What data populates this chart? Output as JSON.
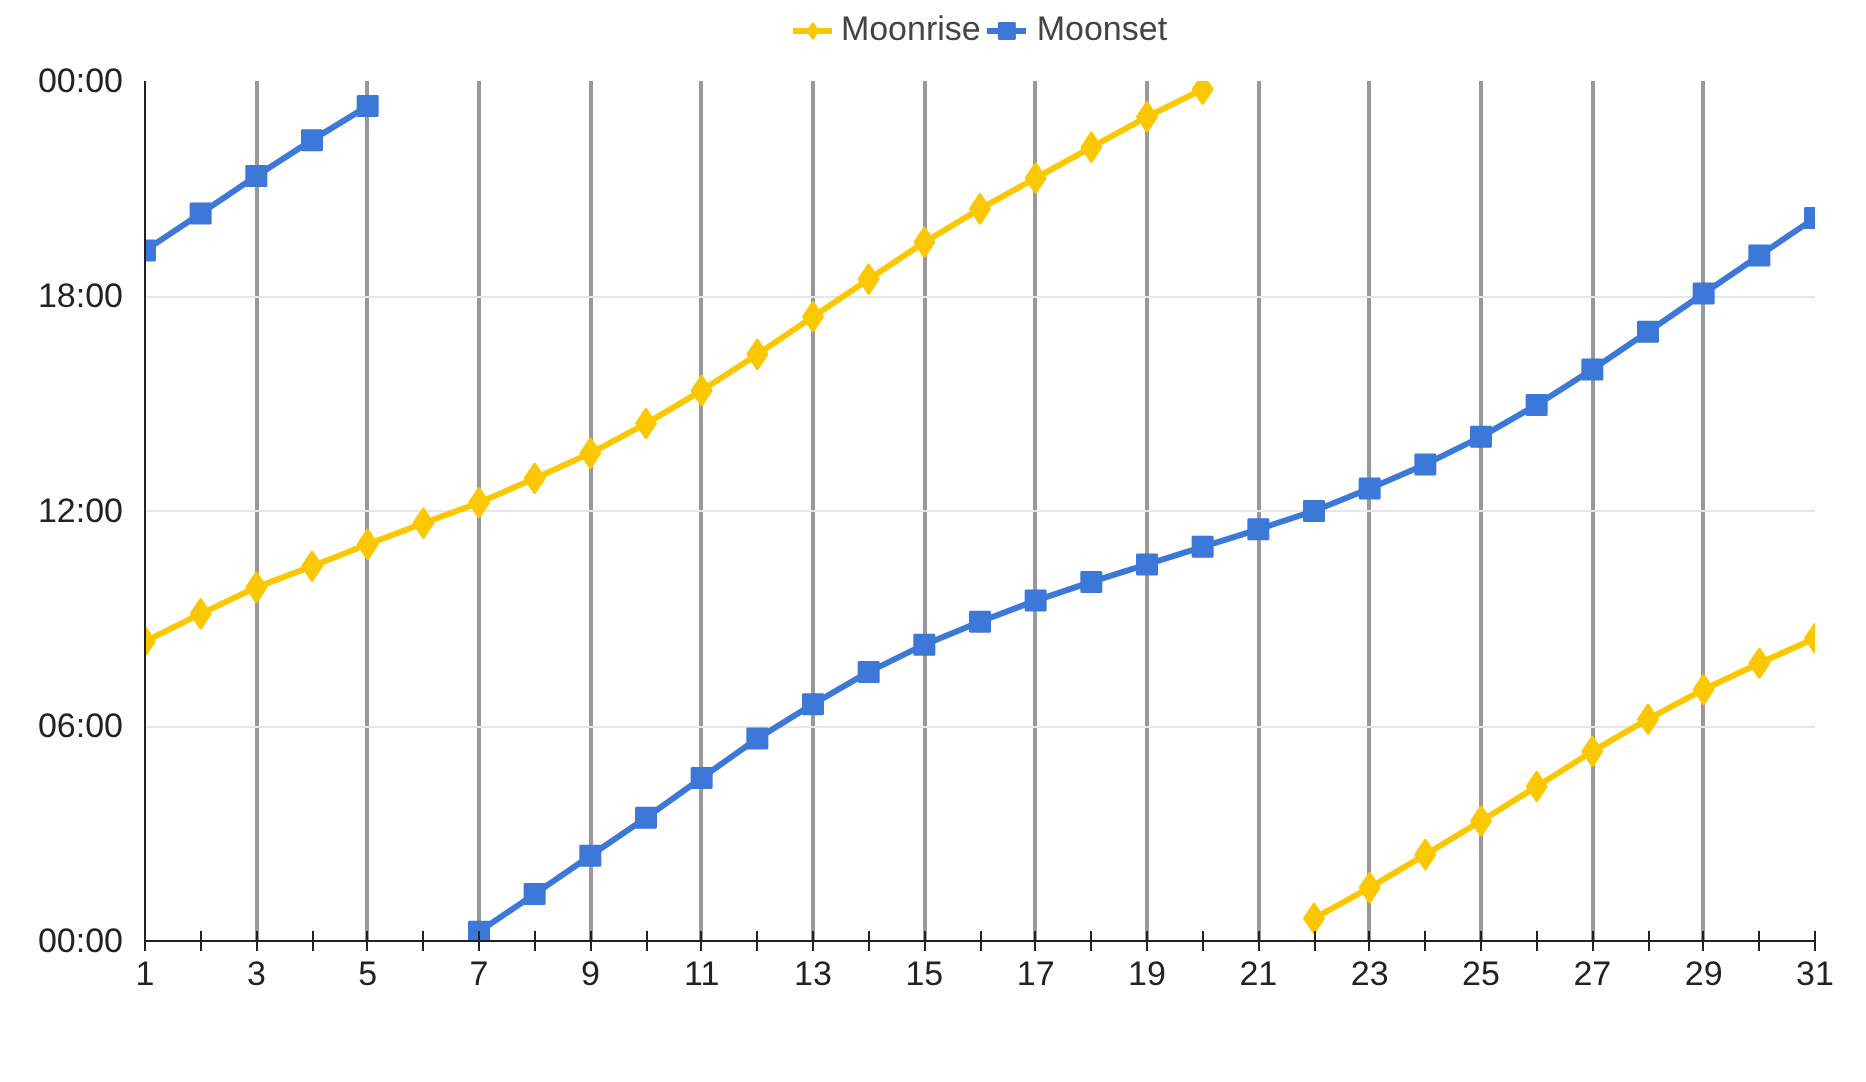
{
  "chart_data": {
    "type": "line",
    "x": [
      1,
      2,
      3,
      4,
      5,
      6,
      7,
      8,
      9,
      10,
      11,
      12,
      13,
      14,
      15,
      16,
      17,
      18,
      19,
      20,
      21,
      22,
      23,
      24,
      25,
      26,
      27,
      28,
      29,
      30,
      31
    ],
    "series": [
      {
        "name": "Moonrise",
        "color": "#fbc800",
        "marker": "diamond",
        "values": [
          8.36,
          9.13,
          9.87,
          10.46,
          11.07,
          11.66,
          12.23,
          12.91,
          13.61,
          14.44,
          15.36,
          16.37,
          17.42,
          18.47,
          19.5,
          20.43,
          21.29,
          22.15,
          23.0,
          23.77,
          null,
          0.63,
          1.49,
          2.41,
          3.35,
          4.31,
          5.29,
          6.19,
          7.02,
          7.75,
          8.45
        ]
      },
      {
        "name": "Moonset",
        "color": "#3c78d8",
        "marker": "square",
        "values": [
          19.27,
          20.3,
          21.35,
          22.35,
          23.3,
          null,
          0.26,
          1.31,
          2.38,
          3.44,
          4.55,
          5.65,
          6.61,
          7.51,
          8.27,
          8.91,
          9.5,
          10.02,
          10.51,
          11.0,
          11.49,
          12.0,
          12.63,
          13.3,
          14.07,
          14.96,
          15.95,
          17.0,
          18.07,
          19.13,
          20.18
        ]
      }
    ],
    "xlim": [
      1,
      31
    ],
    "xticks": [
      1,
      {
        "value": 2,
        "label": null
      },
      3,
      {
        "value": 4,
        "label": null
      },
      5,
      {
        "value": 6,
        "label": null
      },
      7,
      {
        "value": 8,
        "label": null
      },
      9,
      {
        "value": 10,
        "label": null
      },
      11,
      {
        "value": 12,
        "label": null
      },
      13,
      {
        "value": 14,
        "label": null
      },
      15,
      {
        "value": 16,
        "label": null
      },
      17,
      {
        "value": 18,
        "label": null
      },
      19,
      {
        "value": 20,
        "label": null
      },
      21,
      {
        "value": 22,
        "label": null
      },
      23,
      {
        "value": 24,
        "label": null
      },
      25,
      {
        "value": 26,
        "label": null
      },
      27,
      {
        "value": 28,
        "label": null
      },
      29,
      {
        "value": 30,
        "label": null
      },
      31
    ],
    "ylim": [
      0,
      24
    ],
    "yticks": [
      {
        "value": 0,
        "label": "00:00"
      },
      {
        "value": 6,
        "label": "06:00"
      },
      {
        "value": 12,
        "label": "12:00"
      },
      {
        "value": 18,
        "label": "18:00"
      },
      {
        "value": 24,
        "label": "00:00"
      }
    ],
    "grid": true,
    "legend": "top",
    "line_style": "solid"
  }
}
